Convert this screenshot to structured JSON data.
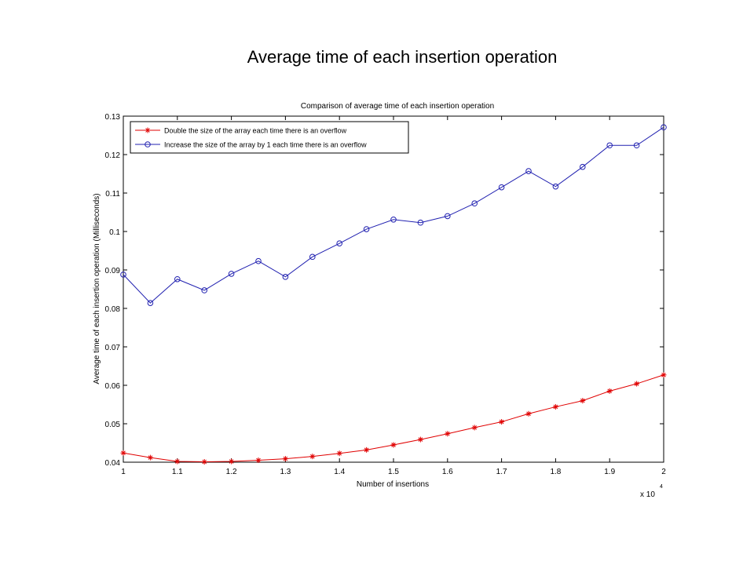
{
  "slide": {
    "title": "Average time of each insertion operation"
  },
  "chart_data": {
    "type": "line",
    "title": "Comparison of average time of each insertion operation",
    "xlabel": "Number of insertions",
    "ylabel": "Average time of each insertion operation (Milliseconds)",
    "x_multiplier_label": "x 10",
    "x_multiplier_exponent": "4",
    "xlim": [
      1,
      2
    ],
    "ylim": [
      0.04,
      0.13
    ],
    "xticks": [
      1,
      1.1,
      1.2,
      1.3,
      1.4,
      1.5,
      1.6,
      1.7,
      1.8,
      1.9,
      2
    ],
    "xtick_labels": [
      "1",
      "1.1",
      "1.2",
      "1.3",
      "1.4",
      "1.5",
      "1.6",
      "1.7",
      "1.8",
      "1.9",
      "2"
    ],
    "yticks": [
      0.04,
      0.05,
      0.06,
      0.07,
      0.08,
      0.09,
      0.1,
      0.11,
      0.12,
      0.13
    ],
    "ytick_labels": [
      "0.04",
      "0.05",
      "0.06",
      "0.07",
      "0.08",
      "0.09",
      "0.1",
      "0.11",
      "0.12",
      "0.13"
    ],
    "grid": false,
    "legend_position": "top-left",
    "x": [
      1,
      1.05,
      1.1,
      1.15,
      1.2,
      1.25,
      1.3,
      1.35,
      1.4,
      1.45,
      1.5,
      1.55,
      1.6,
      1.65,
      1.7,
      1.75,
      1.8,
      1.85,
      1.9,
      1.95,
      2
    ],
    "series": [
      {
        "name": "Double the size of the array each time there is an overflow",
        "color": "#e00000",
        "marker": "star",
        "values": [
          0.0424,
          0.0412,
          0.0402,
          0.0401,
          0.0402,
          0.0405,
          0.0409,
          0.0415,
          0.0423,
          0.0432,
          0.0445,
          0.0459,
          0.0474,
          0.049,
          0.0505,
          0.0526,
          0.0544,
          0.056,
          0.0585,
          0.0604,
          0.0627
        ]
      },
      {
        "name": "Increase the size of the array by 1 each time there is an overflow",
        "color": "#2020b0",
        "marker": "circle",
        "values": [
          0.0888,
          0.0814,
          0.0876,
          0.0847,
          0.089,
          0.0923,
          0.0882,
          0.0934,
          0.0969,
          0.1006,
          0.1031,
          0.1023,
          0.104,
          0.1073,
          0.1115,
          0.1157,
          0.1117,
          0.1168,
          0.1224,
          0.1224,
          0.1271
        ]
      }
    ]
  }
}
